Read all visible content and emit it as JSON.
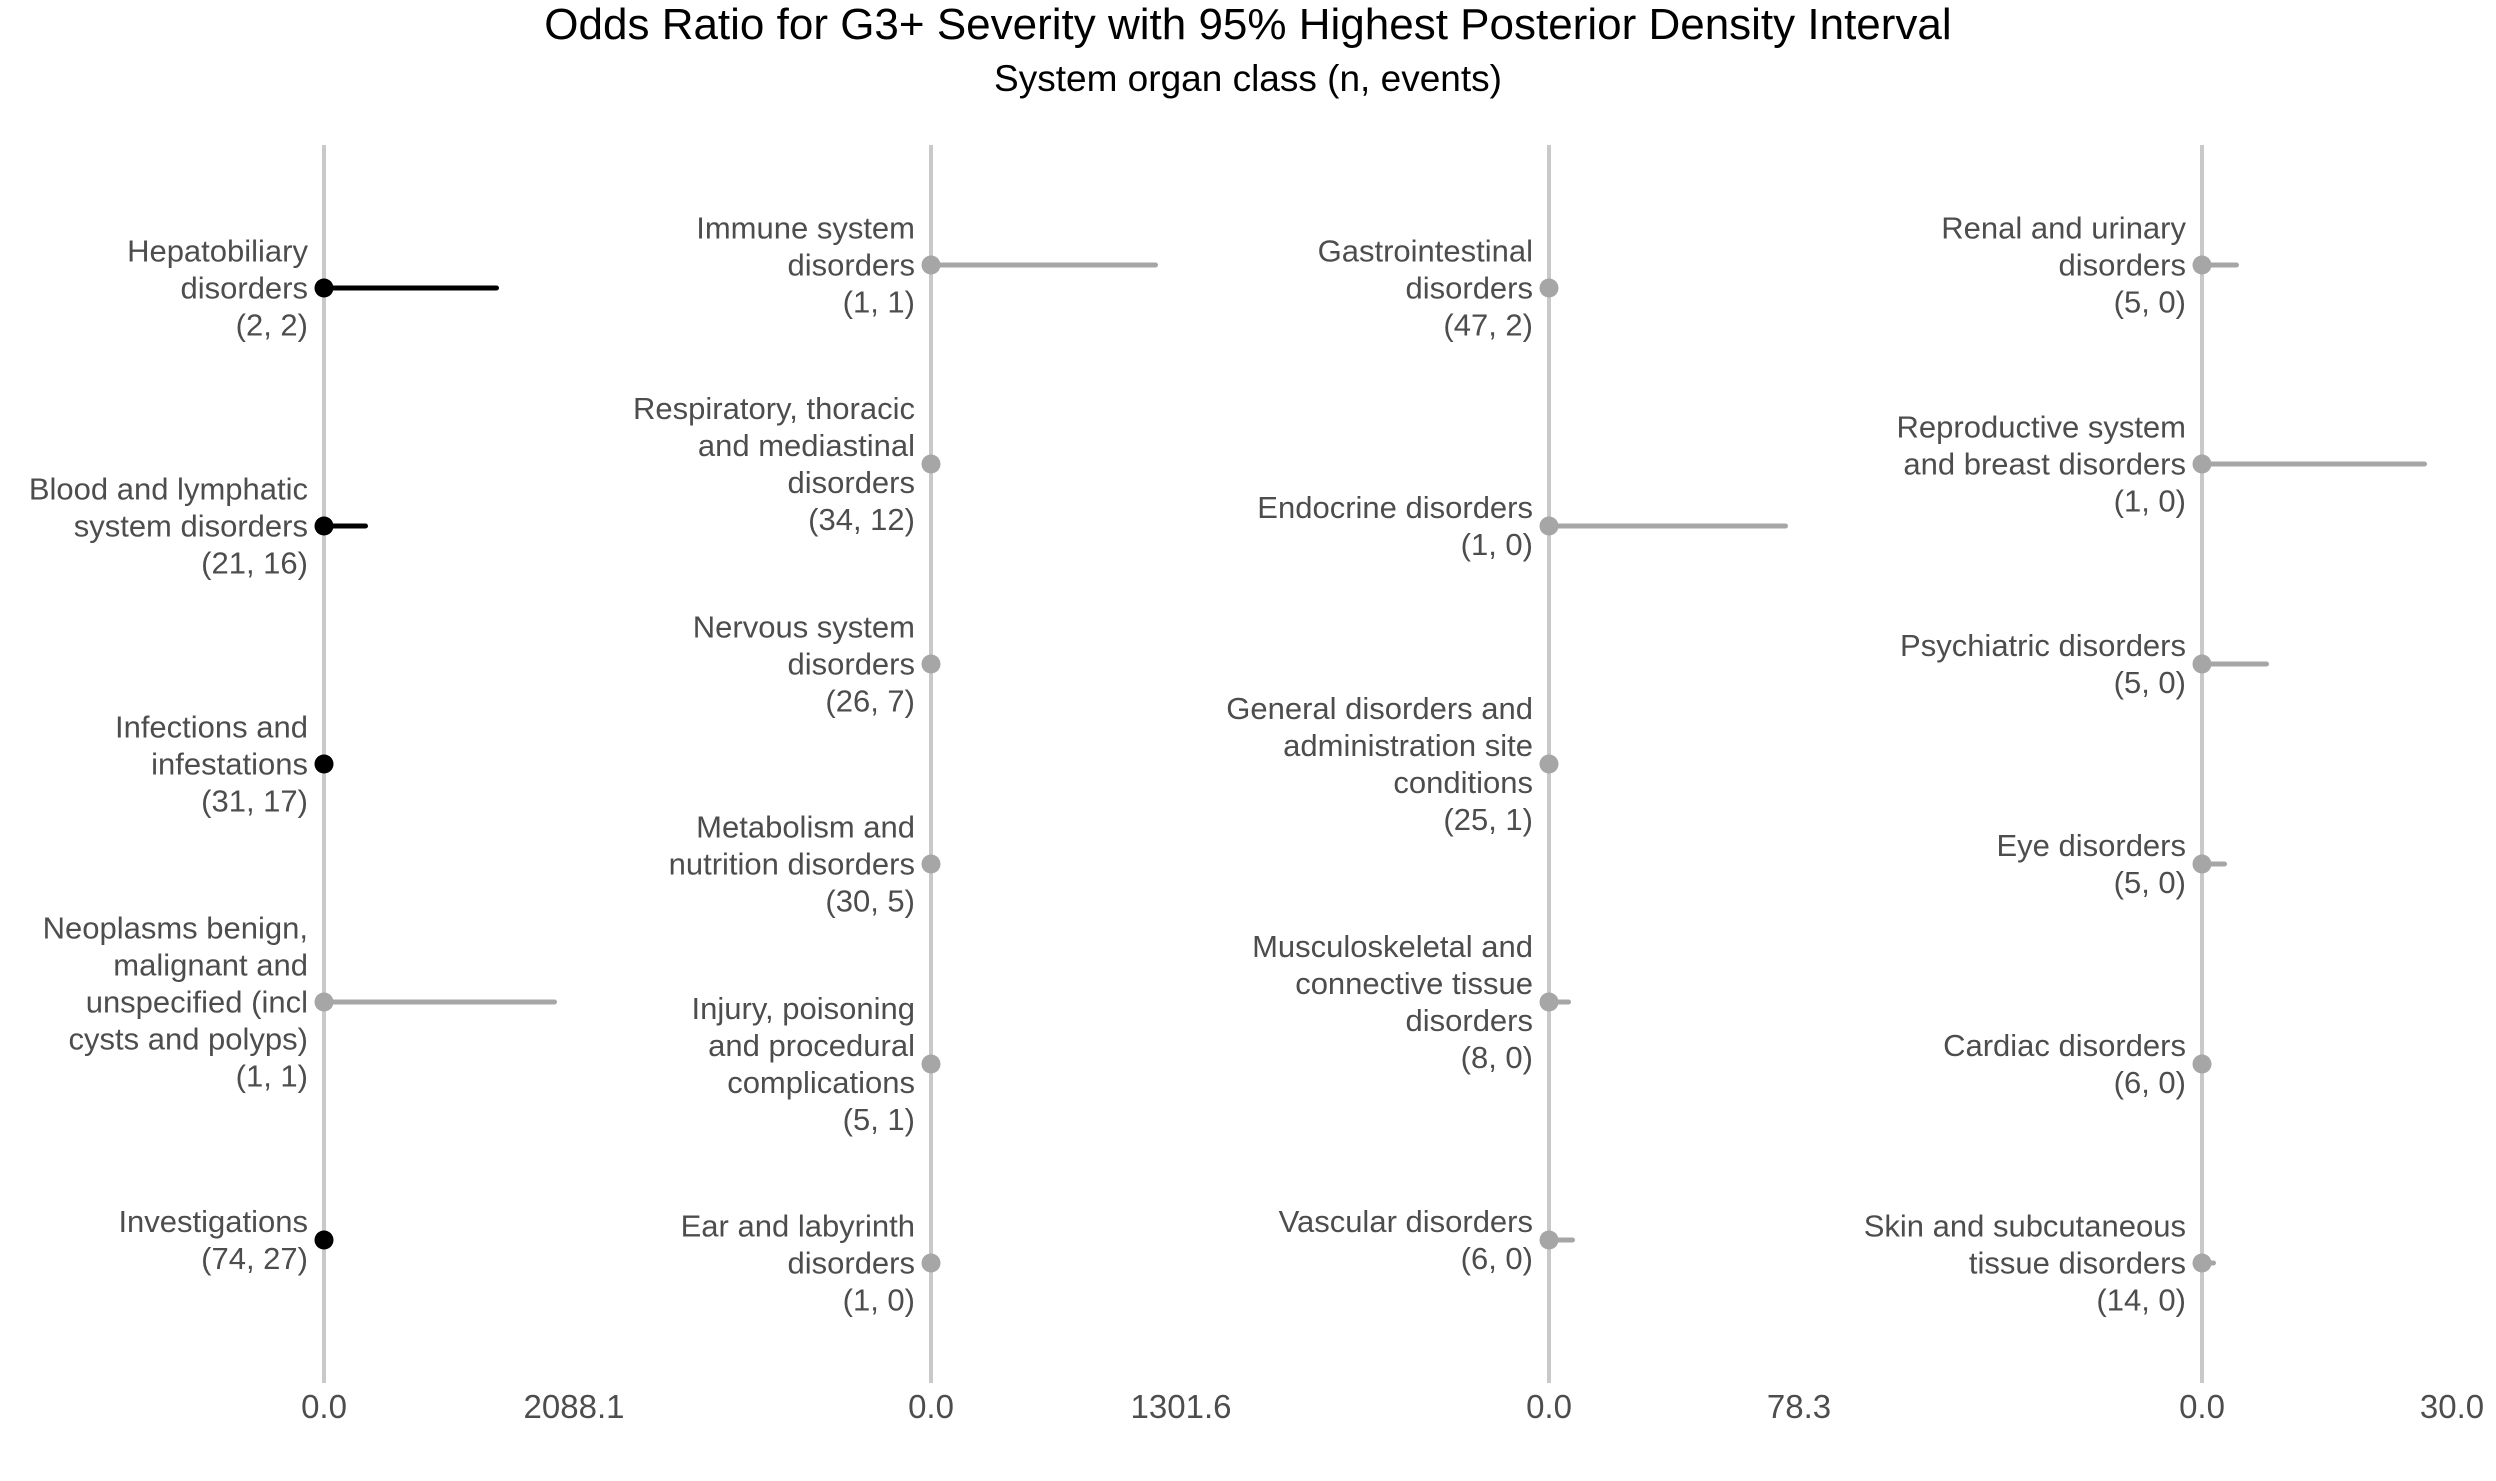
{
  "title": "Odds Ratio for G3+ Severity with 95% Highest Posterior Density Interval",
  "subtitle": "System organ class (n, events)",
  "colors": {
    "black_emphasis": "#000000",
    "gray_series": "#a6a6a6",
    "axis_line": "#c9c9c9",
    "label_text": "#4d4d4d",
    "background": "#ffffff"
  },
  "chart_data": {
    "type": "scatter",
    "variant": "faceted forest plot of odds ratios with 95% HPD interval bars",
    "title": "Odds Ratio for G3+ Severity with 95% Highest Posterior Density Interval",
    "xlabel": "System organ class (n, events)",
    "ylabel": "",
    "grid": false,
    "legend": false,
    "facets": 4,
    "panels": [
      {
        "x_tick_labels": [
          "0.0",
          "2088.1"
        ],
        "x_ticks": [
          0.0,
          2088.1
        ],
        "x_max": 2088.1,
        "rows": [
          {
            "label_lines": [
              "Hepatobiliary",
              "disorders"
            ],
            "n_events": "(2, 2)",
            "n": 2,
            "events": 2,
            "or_point": 0.0,
            "hdi_upper": 1460,
            "emphasis": "black"
          },
          {
            "label_lines": [
              "Blood and lymphatic",
              "system disorders"
            ],
            "n_events": "(21, 16)",
            "n": 21,
            "events": 16,
            "or_point": 0.0,
            "hdi_upper": 370,
            "emphasis": "black"
          },
          {
            "label_lines": [
              "Infections and",
              "infestations"
            ],
            "n_events": "(31, 17)",
            "n": 31,
            "events": 17,
            "or_point": 0.0,
            "hdi_upper": 0,
            "emphasis": "black"
          },
          {
            "label_lines": [
              "Neoplasms benign,",
              "malignant and",
              "unspecified (incl",
              "cysts and polyps)"
            ],
            "n_events": "(1, 1)",
            "n": 1,
            "events": 1,
            "or_point": 0.0,
            "hdi_upper": 1950,
            "emphasis": "gray"
          },
          {
            "label_lines": [
              "Investigations"
            ],
            "n_events": "(74, 27)",
            "n": 74,
            "events": 27,
            "or_point": 0.0,
            "hdi_upper": 0,
            "emphasis": "black"
          }
        ]
      },
      {
        "x_tick_labels": [
          "0.0",
          "1301.6"
        ],
        "x_ticks": [
          0.0,
          1301.6
        ],
        "x_max": 1301.6,
        "rows": [
          {
            "label_lines": [
              "Immune system",
              "disorders"
            ],
            "n_events": "(1, 1)",
            "n": 1,
            "events": 1,
            "or_point": 0.0,
            "hdi_upper": 1180,
            "emphasis": "gray"
          },
          {
            "label_lines": [
              "Respiratory, thoracic",
              "and mediastinal",
              "disorders"
            ],
            "n_events": "(34, 12)",
            "n": 34,
            "events": 12,
            "or_point": 0.0,
            "hdi_upper": 0,
            "emphasis": "gray"
          },
          {
            "label_lines": [
              "Nervous system",
              "disorders"
            ],
            "n_events": "(26, 7)",
            "n": 26,
            "events": 7,
            "or_point": 0.0,
            "hdi_upper": 0,
            "emphasis": "gray"
          },
          {
            "label_lines": [
              "Metabolism and",
              "nutrition disorders"
            ],
            "n_events": "(30, 5)",
            "n": 30,
            "events": 5,
            "or_point": 0.0,
            "hdi_upper": 0,
            "emphasis": "gray"
          },
          {
            "label_lines": [
              "Injury, poisoning",
              "and procedural",
              "complications"
            ],
            "n_events": "(5, 1)",
            "n": 5,
            "events": 1,
            "or_point": 0.0,
            "hdi_upper": 0,
            "emphasis": "gray"
          },
          {
            "label_lines": [
              "Ear and labyrinth",
              "disorders"
            ],
            "n_events": "(1, 0)",
            "n": 1,
            "events": 0,
            "or_point": 0.0,
            "hdi_upper": 0,
            "emphasis": "gray"
          }
        ]
      },
      {
        "x_tick_labels": [
          "0.0",
          "78.3"
        ],
        "x_ticks": [
          0.0,
          78.3
        ],
        "x_max": 78.3,
        "rows": [
          {
            "label_lines": [
              "Gastrointestinal",
              "disorders"
            ],
            "n_events": "(47, 2)",
            "n": 47,
            "events": 2,
            "or_point": 0.0,
            "hdi_upper": 0,
            "emphasis": "gray"
          },
          {
            "label_lines": [
              "Endocrine disorders"
            ],
            "n_events": "(1, 0)",
            "n": 1,
            "events": 0,
            "or_point": 0.0,
            "hdi_upper": 75,
            "emphasis": "gray"
          },
          {
            "label_lines": [
              "General disorders and",
              "administration site",
              "conditions"
            ],
            "n_events": "(25, 1)",
            "n": 25,
            "events": 1,
            "or_point": 0.0,
            "hdi_upper": 0,
            "emphasis": "gray"
          },
          {
            "label_lines": [
              "Musculoskeletal and",
              "connective tissue",
              "disorders"
            ],
            "n_events": "(8, 0)",
            "n": 8,
            "events": 0,
            "or_point": 0.0,
            "hdi_upper": 7,
            "emphasis": "gray"
          },
          {
            "label_lines": [
              "Vascular disorders"
            ],
            "n_events": "(6, 0)",
            "n": 6,
            "events": 0,
            "or_point": 0.0,
            "hdi_upper": 8,
            "emphasis": "gray"
          }
        ]
      },
      {
        "x_tick_labels": [
          "0.0",
          "30.0"
        ],
        "x_ticks": [
          0.0,
          30.0
        ],
        "x_max": 30.0,
        "rows": [
          {
            "label_lines": [
              "Renal and urinary",
              "disorders"
            ],
            "n_events": "(5, 0)",
            "n": 5,
            "events": 0,
            "or_point": 0.0,
            "hdi_upper": 4.4,
            "emphasis": "gray"
          },
          {
            "label_lines": [
              "Reproductive system",
              "and breast disorders"
            ],
            "n_events": "(1, 0)",
            "n": 1,
            "events": 0,
            "or_point": 0.0,
            "hdi_upper": 27,
            "emphasis": "gray"
          },
          {
            "label_lines": [
              "Psychiatric disorders"
            ],
            "n_events": "(5, 0)",
            "n": 5,
            "events": 0,
            "or_point": 0.0,
            "hdi_upper": 8,
            "emphasis": "gray"
          },
          {
            "label_lines": [
              "Eye disorders"
            ],
            "n_events": "(5, 0)",
            "n": 5,
            "events": 0,
            "or_point": 0.0,
            "hdi_upper": 3,
            "emphasis": "gray"
          },
          {
            "label_lines": [
              "Cardiac disorders"
            ],
            "n_events": "(6, 0)",
            "n": 6,
            "events": 0,
            "or_point": 0.0,
            "hdi_upper": 0,
            "emphasis": "gray"
          },
          {
            "label_lines": [
              "Skin and subcutaneous",
              "tissue disorders"
            ],
            "n_events": "(14, 0)",
            "n": 14,
            "events": 0,
            "or_point": 0.0,
            "hdi_upper": 1.7,
            "emphasis": "gray"
          }
        ]
      }
    ]
  }
}
